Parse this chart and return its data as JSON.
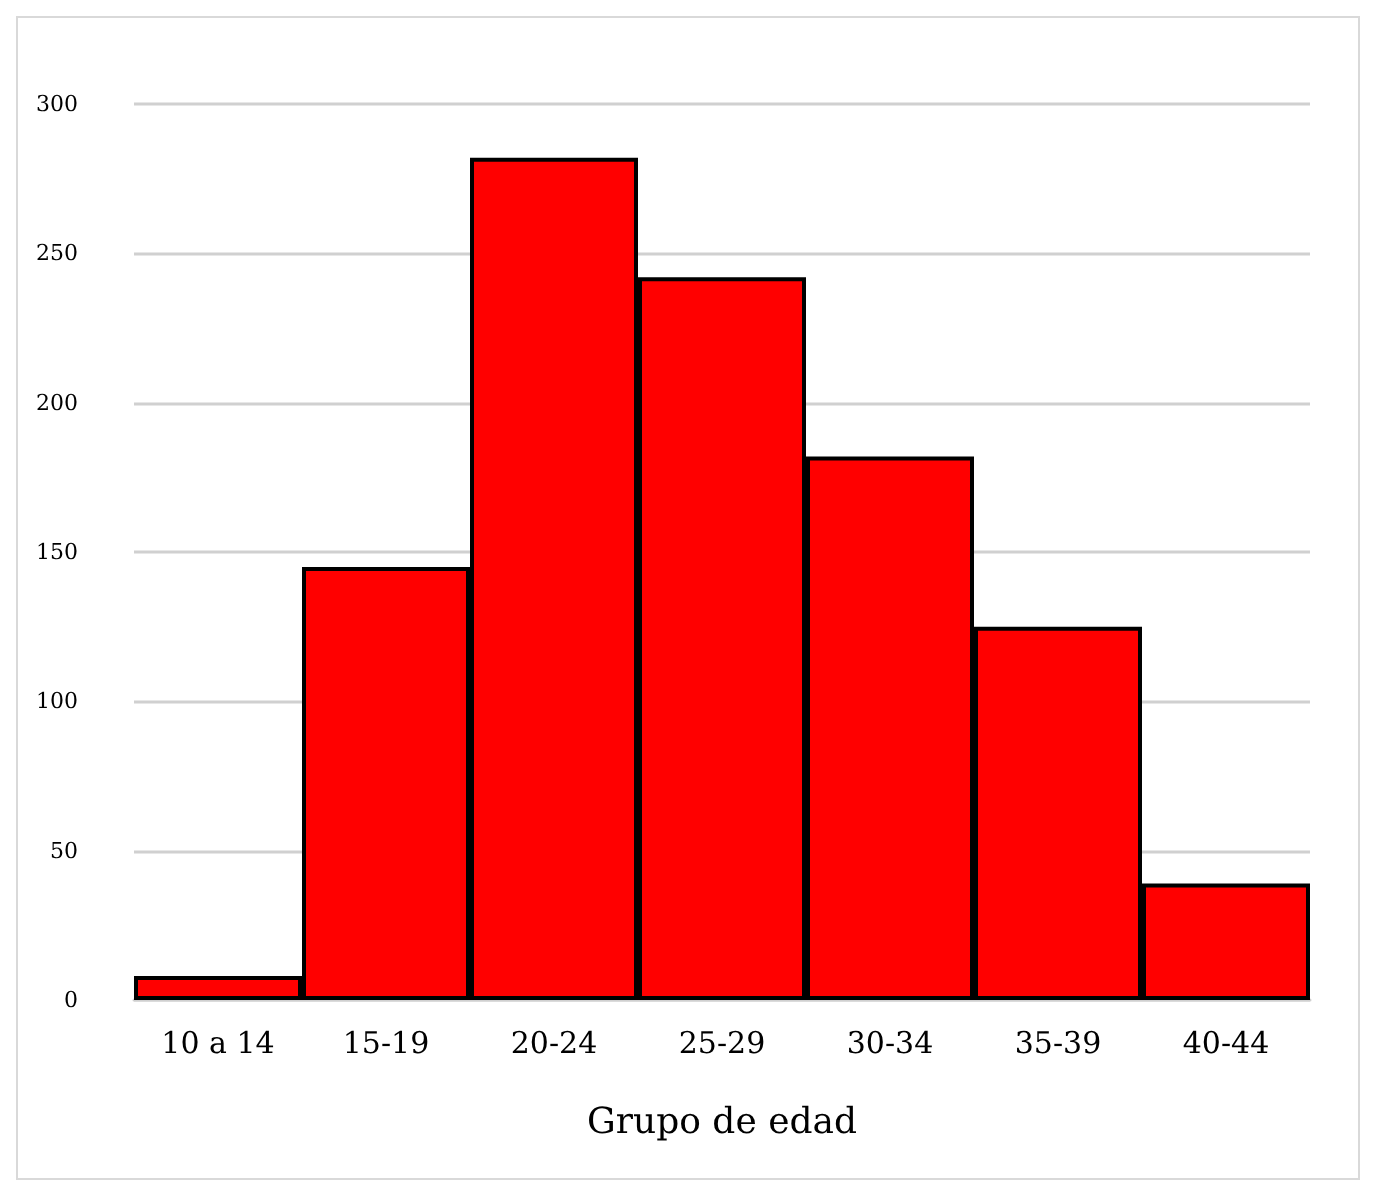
{
  "chart_data": {
    "type": "bar",
    "xlabel": "Grupo de edad",
    "categories": [
      "10 a 14",
      "15-19",
      "20-24",
      "25-29",
      "30-34",
      "35-39",
      "40-44"
    ],
    "values": [
      8,
      145,
      282,
      242,
      182,
      125,
      39
    ],
    "color": "#ff0000",
    "ylim": [
      0,
      300
    ],
    "yticks": [
      0,
      50,
      100,
      150,
      200,
      250,
      300
    ],
    "grid": "y"
  }
}
